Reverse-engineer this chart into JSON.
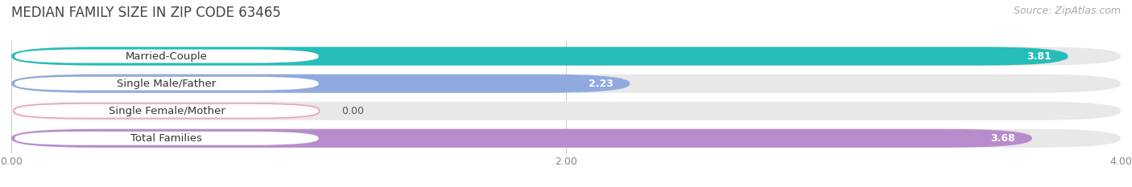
{
  "title": "MEDIAN FAMILY SIZE IN ZIP CODE 63465",
  "source": "Source: ZipAtlas.com",
  "categories": [
    "Married-Couple",
    "Single Male/Father",
    "Single Female/Mother",
    "Total Families"
  ],
  "values": [
    3.81,
    2.23,
    0.0,
    3.68
  ],
  "bar_colors": [
    "#26bdb8",
    "#90aadf",
    "#f0a0b5",
    "#b88ccc"
  ],
  "xlim_min": 0.0,
  "xlim_max": 4.0,
  "xticks": [
    0.0,
    2.0,
    4.0
  ],
  "xticklabels": [
    "0.00",
    "2.00",
    "4.00"
  ],
  "background_color": "#ffffff",
  "bar_bg_color": "#e8e8e8",
  "title_fontsize": 12,
  "source_fontsize": 9,
  "label_fontsize": 9.5,
  "value_fontsize": 9
}
